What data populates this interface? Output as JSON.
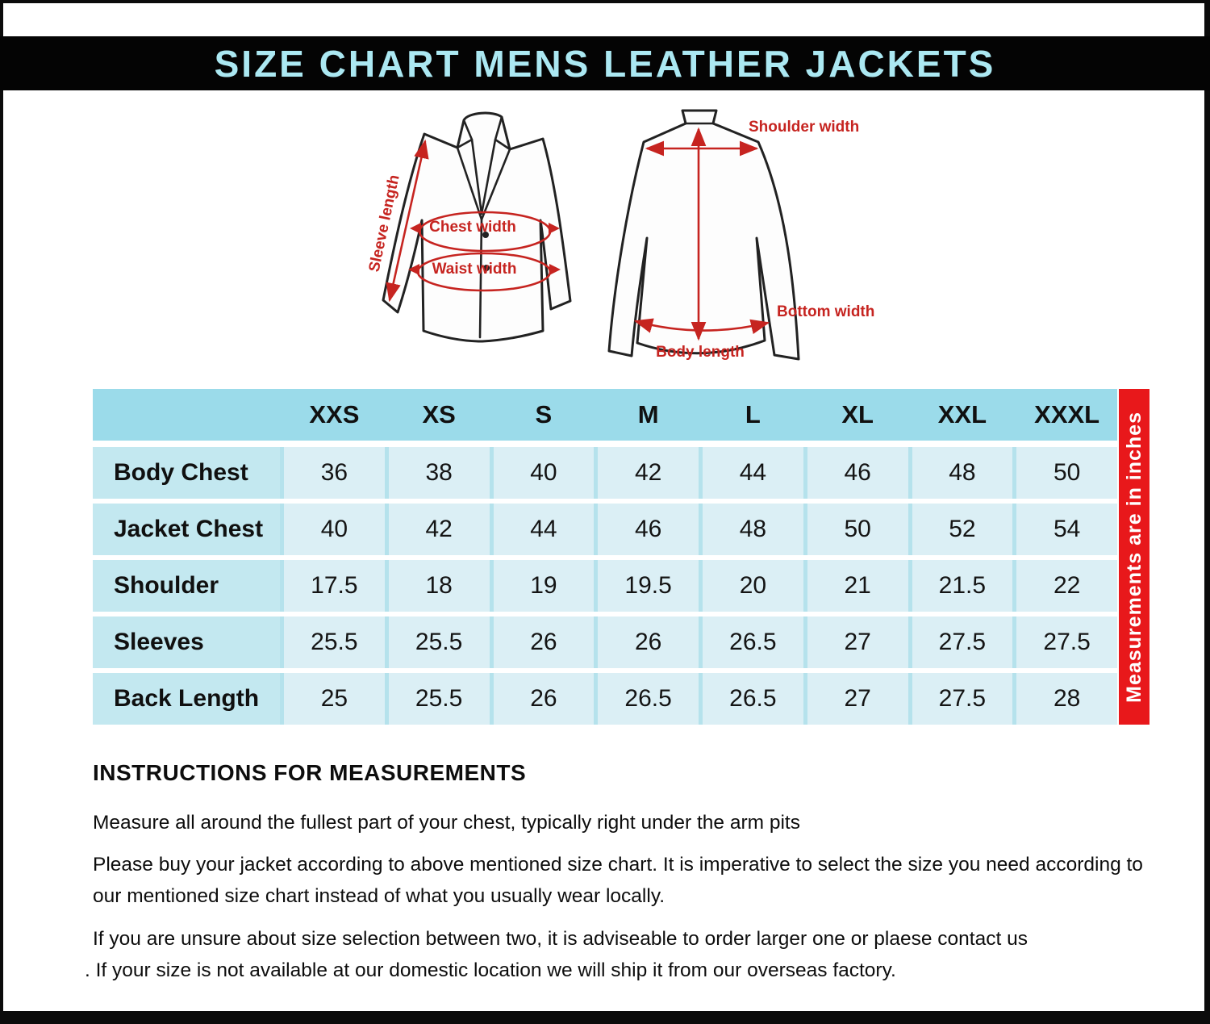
{
  "header": {
    "title": "SIZE CHART MENS LEATHER JACKETS"
  },
  "diagram": {
    "front_jacket_labels": {
      "sleeve_length": "Sleeve length",
      "chest_width": "Chest width",
      "waist_width": "Waist width"
    },
    "back_jacket_labels": {
      "shoulder_width": "Shoulder width",
      "bottom_width": "Bottom width",
      "body_length": "Body length"
    }
  },
  "size_table": {
    "columns": [
      "XXS",
      "XS",
      "S",
      "M",
      "L",
      "XL",
      "XXL",
      "XXXL"
    ],
    "rows": [
      {
        "label": "Body Chest",
        "values": [
          "36",
          "38",
          "40",
          "42",
          "44",
          "46",
          "48",
          "50"
        ]
      },
      {
        "label": "Jacket Chest",
        "values": [
          "40",
          "42",
          "44",
          "46",
          "48",
          "50",
          "52",
          "54"
        ]
      },
      {
        "label": "Shoulder",
        "values": [
          "17.5",
          "18",
          "19",
          "19.5",
          "20",
          "21",
          "21.5",
          "22"
        ]
      },
      {
        "label": "Sleeves",
        "values": [
          "25.5",
          "25.5",
          "26",
          "26",
          "26.5",
          "27",
          "27.5",
          "27.5"
        ]
      },
      {
        "label": "Back Length",
        "values": [
          "25",
          "25.5",
          "26",
          "26.5",
          "26.5",
          "27",
          "27.5",
          "28"
        ]
      }
    ],
    "units_note": "Measurements  are in inches"
  },
  "chart_data": {
    "type": "table",
    "title": "SIZE CHART MENS LEATHER JACKETS",
    "columns": [
      "XXS",
      "XS",
      "S",
      "M",
      "L",
      "XL",
      "XXL",
      "XXXL"
    ],
    "rows": [
      {
        "label": "Body Chest",
        "values": [
          36,
          38,
          40,
          42,
          44,
          46,
          48,
          50
        ]
      },
      {
        "label": "Jacket Chest",
        "values": [
          40,
          42,
          44,
          46,
          48,
          50,
          52,
          54
        ]
      },
      {
        "label": "Shoulder",
        "values": [
          17.5,
          18,
          19,
          19.5,
          20,
          21,
          21.5,
          22
        ]
      },
      {
        "label": "Sleeves",
        "values": [
          25.5,
          25.5,
          26,
          26,
          26.5,
          27,
          27.5,
          27.5
        ]
      },
      {
        "label": "Back Length",
        "values": [
          25,
          25.5,
          26,
          26.5,
          26.5,
          27,
          27.5,
          28
        ]
      }
    ],
    "units": "inches"
  },
  "instructions": {
    "heading": "INSTRUCTIONS FOR MEASUREMENTS",
    "paragraphs": [
      "Measure all around the fullest part of your chest, typically right under the arm pits",
      "Please buy your jacket according to above mentioned size chart. It is imperative to select the size you need according to our mentioned size chart instead of what you  usually wear locally.",
      "If you are unsure about size selection between two, it is adviseable to order larger one or plaese contact us",
      ". If your size is not available at our domestic location we will ship it from our overseas factory."
    ]
  },
  "colors": {
    "accent_red": "#e8181b",
    "annotation_red": "#c62420",
    "table_header_bg": "#9bdbea",
    "table_label_bg": "#c3e8f0",
    "table_cell_bg": "#dbeff5",
    "title_text": "#abe8f2"
  }
}
